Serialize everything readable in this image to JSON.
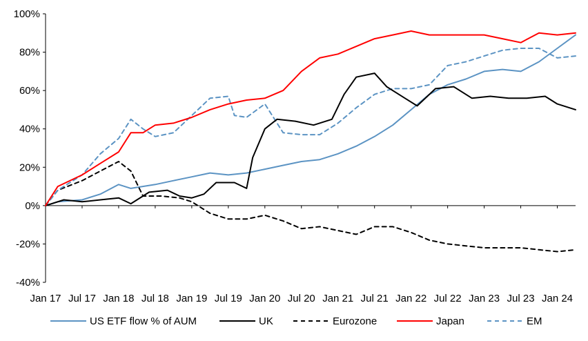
{
  "chart_data": {
    "type": "line",
    "title": "",
    "xlabel": "",
    "ylabel": "",
    "x_tick_labels": [
      "Jan 17",
      "Jul 17",
      "Jan 18",
      "Jul 18",
      "Jan 19",
      "Jul 19",
      "Jan 20",
      "Jul 20",
      "Jan 21",
      "Jul 21",
      "Jan 22",
      "Jul 22",
      "Jan 23",
      "Jul 23",
      "Jan 24"
    ],
    "x_tick_dates": [
      "2017-01",
      "2017-07",
      "2018-01",
      "2018-07",
      "2019-01",
      "2019-07",
      "2020-01",
      "2020-07",
      "2021-01",
      "2021-07",
      "2022-01",
      "2022-07",
      "2023-01",
      "2023-07",
      "2024-01"
    ],
    "y_tick_labels": [
      "100%",
      "80%",
      "60%",
      "40%",
      "20%",
      "0%",
      "-20%",
      "-40%"
    ],
    "y_tick_values": [
      100,
      80,
      60,
      40,
      20,
      0,
      -20,
      -40
    ],
    "ylim": [
      -40,
      100
    ],
    "xlim": [
      "2017-01",
      "2024-04"
    ],
    "grid": false,
    "legend_position": "bottom",
    "series": [
      {
        "name": "US ETF flow % of AUM",
        "color": "#5b93c3",
        "dash": "solid",
        "points": [
          [
            "2017-01",
            0
          ],
          [
            "2017-03",
            2
          ],
          [
            "2017-07",
            3
          ],
          [
            "2017-10",
            6
          ],
          [
            "2018-01",
            11
          ],
          [
            "2018-03",
            9
          ],
          [
            "2018-07",
            11
          ],
          [
            "2018-10",
            13
          ],
          [
            "2019-01",
            15
          ],
          [
            "2019-04",
            17
          ],
          [
            "2019-07",
            16
          ],
          [
            "2019-10",
            17
          ],
          [
            "2020-01",
            19
          ],
          [
            "2020-04",
            21
          ],
          [
            "2020-07",
            23
          ],
          [
            "2020-10",
            24
          ],
          [
            "2021-01",
            27
          ],
          [
            "2021-04",
            31
          ],
          [
            "2021-07",
            36
          ],
          [
            "2021-10",
            42
          ],
          [
            "2022-01",
            50
          ],
          [
            "2022-04",
            58
          ],
          [
            "2022-07",
            63
          ],
          [
            "2022-10",
            66
          ],
          [
            "2023-01",
            70
          ],
          [
            "2023-04",
            71
          ],
          [
            "2023-07",
            70
          ],
          [
            "2023-10",
            75
          ],
          [
            "2024-01",
            82
          ],
          [
            "2024-04",
            89
          ]
        ]
      },
      {
        "name": "UK",
        "color": "#000000",
        "dash": "solid",
        "points": [
          [
            "2017-01",
            0
          ],
          [
            "2017-04",
            3
          ],
          [
            "2017-07",
            2
          ],
          [
            "2017-10",
            3
          ],
          [
            "2018-01",
            4
          ],
          [
            "2018-03",
            1
          ],
          [
            "2018-06",
            7
          ],
          [
            "2018-09",
            8
          ],
          [
            "2018-11",
            5
          ],
          [
            "2019-01",
            4
          ],
          [
            "2019-03",
            6
          ],
          [
            "2019-05",
            12
          ],
          [
            "2019-08",
            12
          ],
          [
            "2019-10",
            9
          ],
          [
            "2019-11",
            25
          ],
          [
            "2020-01",
            40
          ],
          [
            "2020-03",
            45
          ],
          [
            "2020-06",
            44
          ],
          [
            "2020-09",
            42
          ],
          [
            "2020-12",
            45
          ],
          [
            "2021-02",
            58
          ],
          [
            "2021-04",
            67
          ],
          [
            "2021-07",
            69
          ],
          [
            "2021-09",
            62
          ],
          [
            "2021-12",
            56
          ],
          [
            "2022-02",
            52
          ],
          [
            "2022-05",
            61
          ],
          [
            "2022-08",
            62
          ],
          [
            "2022-11",
            56
          ],
          [
            "2023-02",
            57
          ],
          [
            "2023-05",
            56
          ],
          [
            "2023-08",
            56
          ],
          [
            "2023-11",
            57
          ],
          [
            "2024-01",
            53
          ],
          [
            "2024-04",
            50
          ]
        ]
      },
      {
        "name": "Eurozone",
        "color": "#000000",
        "dash": "dashed",
        "points": [
          [
            "2017-01",
            0
          ],
          [
            "2017-03",
            8
          ],
          [
            "2017-07",
            13
          ],
          [
            "2017-10",
            18
          ],
          [
            "2018-01",
            23
          ],
          [
            "2018-03",
            18
          ],
          [
            "2018-05",
            5
          ],
          [
            "2018-08",
            5
          ],
          [
            "2018-11",
            4
          ],
          [
            "2019-01",
            2
          ],
          [
            "2019-04",
            -4
          ],
          [
            "2019-07",
            -7
          ],
          [
            "2019-10",
            -7
          ],
          [
            "2020-01",
            -5
          ],
          [
            "2020-04",
            -8
          ],
          [
            "2020-07",
            -12
          ],
          [
            "2020-10",
            -11
          ],
          [
            "2021-01",
            -13
          ],
          [
            "2021-04",
            -15
          ],
          [
            "2021-07",
            -11
          ],
          [
            "2021-10",
            -11
          ],
          [
            "2022-01",
            -14
          ],
          [
            "2022-04",
            -18
          ],
          [
            "2022-07",
            -20
          ],
          [
            "2022-10",
            -21
          ],
          [
            "2023-01",
            -22
          ],
          [
            "2023-04",
            -22
          ],
          [
            "2023-07",
            -22
          ],
          [
            "2023-10",
            -23
          ],
          [
            "2024-01",
            -24
          ],
          [
            "2024-04",
            -23
          ]
        ]
      },
      {
        "name": "Japan",
        "color": "#ff0000",
        "dash": "solid",
        "points": [
          [
            "2017-01",
            0
          ],
          [
            "2017-03",
            10
          ],
          [
            "2017-07",
            16
          ],
          [
            "2017-10",
            22
          ],
          [
            "2018-01",
            28
          ],
          [
            "2018-03",
            38
          ],
          [
            "2018-05",
            38
          ],
          [
            "2018-07",
            42
          ],
          [
            "2018-10",
            43
          ],
          [
            "2019-01",
            46
          ],
          [
            "2019-04",
            50
          ],
          [
            "2019-07",
            53
          ],
          [
            "2019-10",
            55
          ],
          [
            "2020-01",
            56
          ],
          [
            "2020-04",
            60
          ],
          [
            "2020-07",
            70
          ],
          [
            "2020-10",
            77
          ],
          [
            "2021-01",
            79
          ],
          [
            "2021-04",
            83
          ],
          [
            "2021-07",
            87
          ],
          [
            "2021-10",
            89
          ],
          [
            "2022-01",
            91
          ],
          [
            "2022-04",
            89
          ],
          [
            "2022-07",
            89
          ],
          [
            "2022-10",
            89
          ],
          [
            "2023-01",
            89
          ],
          [
            "2023-04",
            87
          ],
          [
            "2023-07",
            85
          ],
          [
            "2023-10",
            90
          ],
          [
            "2024-01",
            89
          ],
          [
            "2024-04",
            90
          ]
        ]
      },
      {
        "name": "EM",
        "color": "#5b93c3",
        "dash": "dashed",
        "points": [
          [
            "2017-01",
            0
          ],
          [
            "2017-03",
            8
          ],
          [
            "2017-07",
            16
          ],
          [
            "2017-10",
            27
          ],
          [
            "2018-01",
            35
          ],
          [
            "2018-03",
            45
          ],
          [
            "2018-05",
            40
          ],
          [
            "2018-07",
            36
          ],
          [
            "2018-10",
            38
          ],
          [
            "2019-01",
            47
          ],
          [
            "2019-04",
            56
          ],
          [
            "2019-07",
            57
          ],
          [
            "2019-08",
            47
          ],
          [
            "2019-10",
            46
          ],
          [
            "2020-01",
            53
          ],
          [
            "2020-04",
            38
          ],
          [
            "2020-07",
            37
          ],
          [
            "2020-10",
            37
          ],
          [
            "2021-01",
            43
          ],
          [
            "2021-04",
            51
          ],
          [
            "2021-07",
            58
          ],
          [
            "2021-10",
            61
          ],
          [
            "2022-01",
            61
          ],
          [
            "2022-04",
            63
          ],
          [
            "2022-07",
            73
          ],
          [
            "2022-10",
            75
          ],
          [
            "2023-01",
            78
          ],
          [
            "2023-04",
            81
          ],
          [
            "2023-07",
            82
          ],
          [
            "2023-10",
            82
          ],
          [
            "2024-01",
            77
          ],
          [
            "2024-04",
            78
          ]
        ]
      }
    ]
  }
}
